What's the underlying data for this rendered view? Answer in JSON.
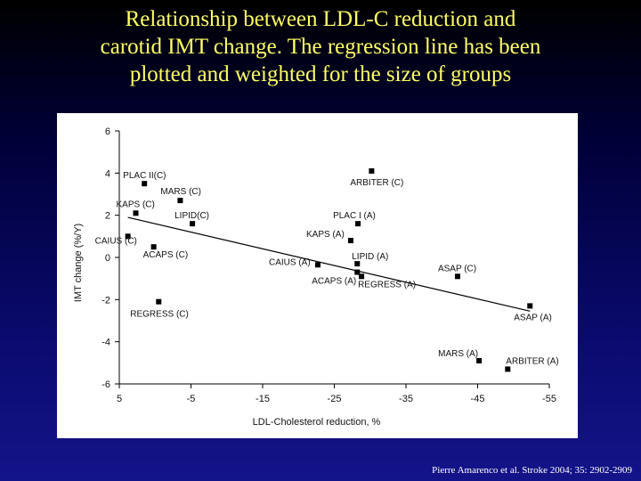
{
  "title_lines": [
    "Relationship between LDL-C reduction and",
    "carotid IMT change. The regression line has been",
    "plotted and weighted for the size of groups"
  ],
  "citation": "Pierre Amarenco et al. Stroke 2004; 35: 2902-2909",
  "colors": {
    "title": "#ffff66",
    "marker": "#000000",
    "line": "#000000"
  },
  "chart_data": {
    "type": "scatter",
    "xlabel": "LDL-Cholesterol reduction, %",
    "ylabel": "IMT change (%/Y)",
    "xlim": [
      5,
      -55
    ],
    "ylim": [
      -6,
      6
    ],
    "xticks": [
      5,
      -5,
      -15,
      -25,
      -35,
      -45,
      -55
    ],
    "xtick_labels": [
      "5",
      "-5",
      "-15",
      "-25",
      "-35",
      "-45",
      "-55"
    ],
    "yticks": [
      6,
      4,
      2,
      0,
      -2,
      -4,
      -6
    ],
    "ytick_labels": [
      "6",
      "4",
      "2",
      "0",
      "-2",
      "-4",
      "-6"
    ],
    "grid": false,
    "points": [
      {
        "label": "PLAC II(C)",
        "x": 1.5,
        "y": 3.5
      },
      {
        "label": "MARS (C)",
        "x": -3.5,
        "y": 2.7
      },
      {
        "label": "KAPS (C)",
        "x": 2.7,
        "y": 2.1
      },
      {
        "label": "LIPID(C)",
        "x": -5.2,
        "y": 1.6
      },
      {
        "label": "CAIUS (C)",
        "x": 3.8,
        "y": 1.0
      },
      {
        "label": "ACAPS (C)",
        "x": 0.2,
        "y": 0.5
      },
      {
        "label": "REGRESS (C)",
        "x": -0.5,
        "y": -2.1
      },
      {
        "label": "ARBITER (C)",
        "x": -30.2,
        "y": 4.1
      },
      {
        "label": "PLAC I (A)",
        "x": -28.3,
        "y": 1.6
      },
      {
        "label": "KAPS (A)",
        "x": -27.3,
        "y": 0.8
      },
      {
        "label": "LIPID (A)",
        "x": -28.2,
        "y": -0.3
      },
      {
        "label": "CAIUS (A)",
        "x": -22.7,
        "y": -0.35
      },
      {
        "label": "ACAPS (A)",
        "x": -28.2,
        "y": -0.7
      },
      {
        "label": "REGRESS (A)",
        "x": -28.8,
        "y": -0.9
      },
      {
        "label": "ASAP (C)",
        "x": -42.2,
        "y": -0.9
      },
      {
        "label": "ASAP (A)",
        "x": -52.3,
        "y": -2.3
      },
      {
        "label": "MARS (A)",
        "x": -45.2,
        "y": -4.9
      },
      {
        "label": "ARBITER (A)",
        "x": -49.2,
        "y": -5.3
      }
    ],
    "regression_line": {
      "x": [
        3.8,
        -52.3
      ],
      "y": [
        1.9,
        -2.55
      ]
    }
  }
}
